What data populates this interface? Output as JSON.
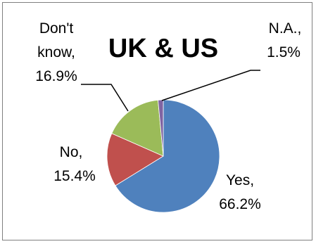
{
  "chart_data": {
    "type": "pie",
    "title": "UK & US",
    "slices": [
      {
        "label": "Yes",
        "value": 66.2,
        "display": "66.2%",
        "color": "#4F81BD"
      },
      {
        "label": "No",
        "value": 15.4,
        "display": "15.4%",
        "color": "#C0504D"
      },
      {
        "label": "Don't know",
        "value": 16.9,
        "display": "16.9%",
        "color": "#9BBB59"
      },
      {
        "label": "N.A.",
        "value": 1.5,
        "display": "1.5%",
        "color": "#8064A2"
      }
    ],
    "labels": {
      "yes_line1": "Yes,",
      "yes_line2": "66.2%",
      "no_line1": "No,",
      "no_line2": "15.4%",
      "dk_line1": "Don't",
      "dk_line2": "know,",
      "dk_line3": "16.9%",
      "na_line1": "N.A.,",
      "na_line2": "1.5%"
    },
    "legend": "none"
  }
}
